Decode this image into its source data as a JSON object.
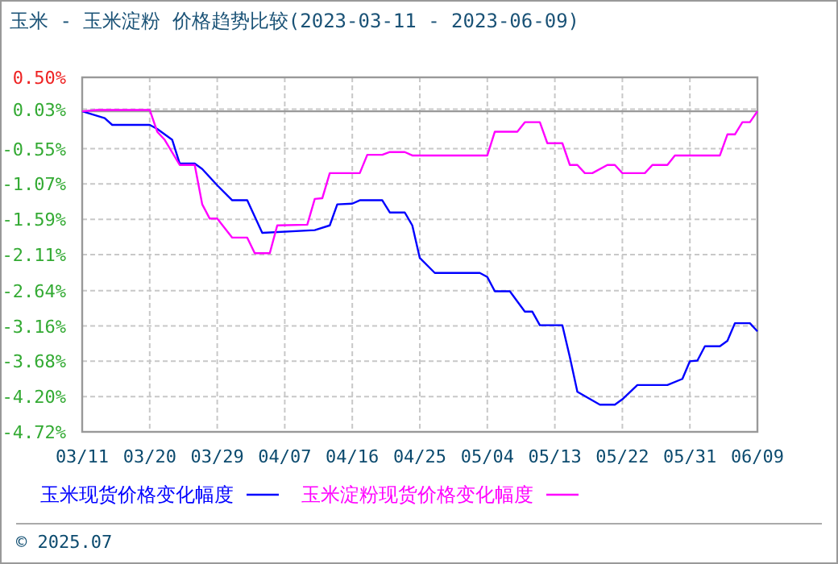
{
  "chart_data": {
    "type": "line",
    "title": "玉米 - 玉米淀粉 价格趋势比较(2023-03-11 - 2023-06-09)",
    "xlim": [
      "2023-03-11",
      "2023-06-09"
    ],
    "xticks": [
      {
        "value": "2023-03-11",
        "label": "03/11"
      },
      {
        "value": "2023-03-20",
        "label": "03/20"
      },
      {
        "value": "2023-03-29",
        "label": "03/29"
      },
      {
        "value": "2023-04-07",
        "label": "04/07"
      },
      {
        "value": "2023-04-16",
        "label": "04/16"
      },
      {
        "value": "2023-04-25",
        "label": "04/25"
      },
      {
        "value": "2023-05-04",
        "label": "05/04"
      },
      {
        "value": "2023-05-13",
        "label": "05/13"
      },
      {
        "value": "2023-05-22",
        "label": "05/22"
      },
      {
        "value": "2023-05-31",
        "label": "05/31"
      },
      {
        "value": "2023-06-09",
        "label": "06/09"
      }
    ],
    "ylim": [
      -4.72,
      0.5
    ],
    "yticks": [
      {
        "value": 0.5,
        "label": "0.50%"
      },
      {
        "value": 0.03,
        "label": "0.03%"
      },
      {
        "value": -0.55,
        "label": "-0.55%"
      },
      {
        "value": -1.07,
        "label": "-1.07%"
      },
      {
        "value": -1.59,
        "label": "-1.59%"
      },
      {
        "value": -2.11,
        "label": "-2.11%"
      },
      {
        "value": -2.64,
        "label": "-2.64%"
      },
      {
        "value": -3.16,
        "label": "-3.16%"
      },
      {
        "value": -3.68,
        "label": "-3.68%"
      },
      {
        "value": -4.2,
        "label": "-4.20%"
      },
      {
        "value": -4.72,
        "label": "-4.72%"
      }
    ],
    "grid": true,
    "legend": "bottom",
    "marker": "none",
    "line_style": "solid",
    "ref_lines": [
      {
        "axis": "y",
        "value": 0,
        "color": "#999999"
      }
    ],
    "annotations": [
      "© 2025.07"
    ],
    "series": [
      {
        "name": "玉米现货价格变化幅度",
        "color": "#0000ff",
        "x": [
          "2023-03-11",
          "2023-03-14",
          "2023-03-15",
          "2023-03-20",
          "2023-03-21",
          "2023-03-23",
          "2023-03-24",
          "2023-03-26",
          "2023-03-27",
          "2023-03-29",
          "2023-03-31",
          "2023-04-02",
          "2023-04-04",
          "2023-04-11",
          "2023-04-13",
          "2023-04-14",
          "2023-04-16",
          "2023-04-17",
          "2023-04-20",
          "2023-04-21",
          "2023-04-23",
          "2023-04-24",
          "2023-04-25",
          "2023-04-27",
          "2023-05-03",
          "2023-05-04",
          "2023-05-05",
          "2023-05-07",
          "2023-05-09",
          "2023-05-10",
          "2023-05-11",
          "2023-05-14",
          "2023-05-15",
          "2023-05-16",
          "2023-05-19",
          "2023-05-21",
          "2023-05-22",
          "2023-05-24",
          "2023-05-28",
          "2023-05-30",
          "2023-05-31",
          "2023-06-01",
          "2023-06-02",
          "2023-06-04",
          "2023-06-05",
          "2023-06-06",
          "2023-06-08",
          "2023-06-09"
        ],
        "values": [
          0,
          -0.1,
          -0.2,
          -0.2,
          -0.26,
          -0.42,
          -0.77,
          -0.77,
          -0.85,
          -1.09,
          -1.31,
          -1.31,
          -1.79,
          -1.75,
          -1.68,
          -1.37,
          -1.36,
          -1.31,
          -1.31,
          -1.49,
          -1.49,
          -1.68,
          -2.16,
          -2.38,
          -2.38,
          -2.44,
          -2.65,
          -2.65,
          -2.95,
          -2.95,
          -3.15,
          -3.15,
          -3.62,
          -4.13,
          -4.32,
          -4.32,
          -4.24,
          -4.03,
          -4.03,
          -3.94,
          -3.68,
          -3.67,
          -3.46,
          -3.46,
          -3.38,
          -3.12,
          -3.12,
          -3.24
        ]
      },
      {
        "name": "玉米淀粉现货价格变化幅度",
        "color": "#ff00ff",
        "x": [
          "2023-03-11",
          "2023-03-13",
          "2023-03-20",
          "2023-03-21",
          "2023-03-22",
          "2023-03-24",
          "2023-03-26",
          "2023-03-27",
          "2023-03-28",
          "2023-03-29",
          "2023-03-31",
          "2023-04-02",
          "2023-04-03",
          "2023-04-05",
          "2023-04-06",
          "2023-04-10",
          "2023-04-11",
          "2023-04-12",
          "2023-04-13",
          "2023-04-17",
          "2023-04-18",
          "2023-04-20",
          "2023-04-21",
          "2023-04-23",
          "2023-04-24",
          "2023-05-04",
          "2023-05-05",
          "2023-05-08",
          "2023-05-09",
          "2023-05-11",
          "2023-05-12",
          "2023-05-14",
          "2023-05-15",
          "2023-05-16",
          "2023-05-17",
          "2023-05-18",
          "2023-05-20",
          "2023-05-21",
          "2023-05-22",
          "2023-05-25",
          "2023-05-26",
          "2023-05-28",
          "2023-05-29",
          "2023-06-04",
          "2023-06-05",
          "2023-06-06",
          "2023-06-07",
          "2023-06-08",
          "2023-06-09"
        ],
        "values": [
          0,
          0.02,
          0.02,
          -0.3,
          -0.42,
          -0.79,
          -0.79,
          -1.37,
          -1.58,
          -1.58,
          -1.86,
          -1.86,
          -2.09,
          -2.09,
          -1.68,
          -1.67,
          -1.29,
          -1.28,
          -0.91,
          -0.91,
          -0.64,
          -0.64,
          -0.6,
          -0.6,
          -0.65,
          -0.65,
          -0.3,
          -0.3,
          -0.16,
          -0.16,
          -0.47,
          -0.47,
          -0.79,
          -0.79,
          -0.91,
          -0.91,
          -0.79,
          -0.79,
          -0.91,
          -0.91,
          -0.79,
          -0.79,
          -0.65,
          -0.65,
          -0.34,
          -0.34,
          -0.16,
          -0.16,
          0
        ]
      }
    ]
  }
}
